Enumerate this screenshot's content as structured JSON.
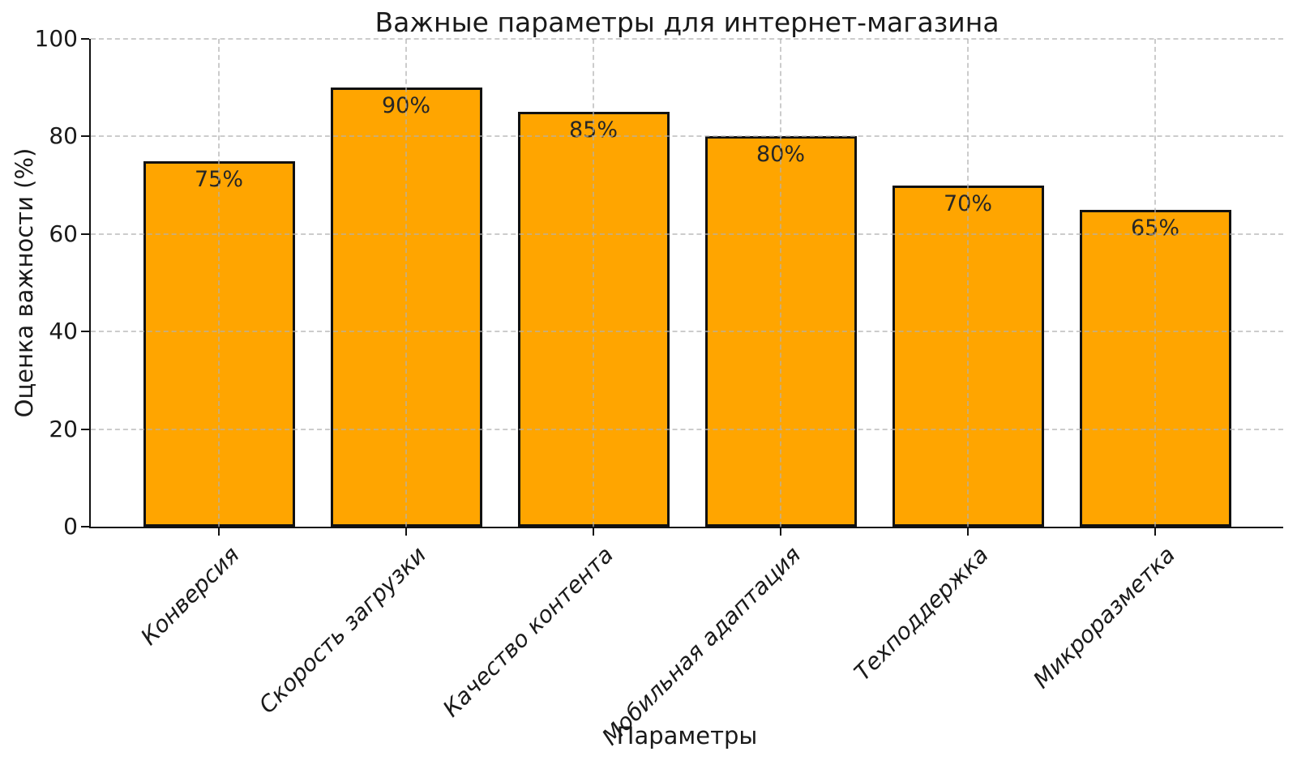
{
  "chart_data": {
    "type": "bar",
    "title": "Важные параметры для интернет-магазина",
    "xlabel": "Параметры",
    "ylabel": "Оценка важности (%)",
    "categories": [
      "Конверсия",
      "Скорость загрузки",
      "Качество контента",
      "Мобильная адаптация",
      "Техподдержка",
      "Микроразметка"
    ],
    "values": [
      75,
      90,
      85,
      80,
      70,
      65
    ],
    "bar_labels": [
      "75%",
      "90%",
      "85%",
      "80%",
      "70%",
      "65%"
    ],
    "ylim": [
      0,
      100
    ],
    "yticks": [
      0,
      20,
      40,
      60,
      80,
      100
    ],
    "grid": "dashed",
    "legend": "none",
    "colors": {
      "bar_fill": "#FFA500",
      "bar_edge": "#111111",
      "grid_line": "#b0b0b0",
      "axis_line": "#111111",
      "text": "#1a1a1a",
      "background": "#ffffff"
    }
  }
}
